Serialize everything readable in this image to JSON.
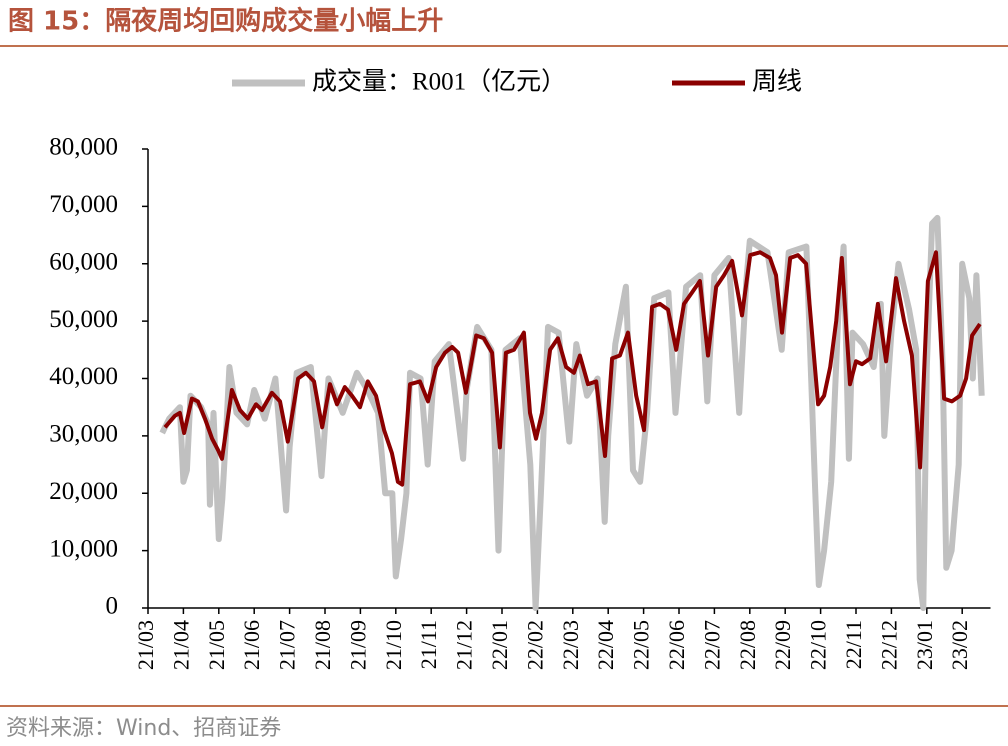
{
  "chart_data": {
    "type": "line",
    "title": "图 15：隔夜周均回购成交量小幅上升",
    "source": "资料来源：Wind、招商证券",
    "xlim": [
      0,
      23.8
    ],
    "xticks": [
      {
        "value": 0,
        "label": "21/03"
      },
      {
        "value": 1,
        "label": "21/04"
      },
      {
        "value": 2,
        "label": "21/05"
      },
      {
        "value": 3,
        "label": "21/06"
      },
      {
        "value": 4,
        "label": "21/07"
      },
      {
        "value": 5,
        "label": "21/08"
      },
      {
        "value": 6,
        "label": "21/09"
      },
      {
        "value": 7,
        "label": "21/10"
      },
      {
        "value": 8,
        "label": "21/11"
      },
      {
        "value": 9,
        "label": "21/12"
      },
      {
        "value": 10,
        "label": "22/01"
      },
      {
        "value": 11,
        "label": "22/02"
      },
      {
        "value": 12,
        "label": "22/03"
      },
      {
        "value": 13,
        "label": "22/04"
      },
      {
        "value": 14,
        "label": "22/05"
      },
      {
        "value": 15,
        "label": "22/06"
      },
      {
        "value": 16,
        "label": "22/07"
      },
      {
        "value": 17,
        "label": "22/08"
      },
      {
        "value": 18,
        "label": "22/09"
      },
      {
        "value": 19,
        "label": "22/10"
      },
      {
        "value": 20,
        "label": "22/11"
      },
      {
        "value": 21,
        "label": "22/12"
      },
      {
        "value": 22,
        "label": "23/01"
      },
      {
        "value": 23,
        "label": "23/02"
      }
    ],
    "ylim": [
      0,
      80000
    ],
    "yticks": [
      0,
      {
        "value": 10000,
        "label": "10,000"
      },
      {
        "value": 20000,
        "label": "20,000"
      },
      {
        "value": 30000,
        "label": "30,000"
      },
      {
        "value": 40000,
        "label": "40,000"
      },
      {
        "value": 50000,
        "label": "50,000"
      },
      {
        "value": 60000,
        "label": "60,000"
      },
      {
        "value": 70000,
        "label": "70,000"
      },
      {
        "value": 80000,
        "label": "80,000"
      }
    ],
    "series": [
      {
        "name": "成交量：R001（亿元）",
        "color": "#c0c0c0",
        "width": 6,
        "x": [
          0.4,
          0.6,
          0.9,
          1.0,
          1.1,
          1.2,
          1.5,
          1.7,
          1.75,
          1.85,
          2.0,
          2.1,
          2.2,
          2.3,
          2.5,
          2.8,
          3.0,
          3.3,
          3.6,
          3.9,
          4.0,
          4.2,
          4.6,
          4.9,
          5.1,
          5.5,
          5.9,
          6.2,
          6.5,
          6.7,
          6.9,
          7.0,
          7.15,
          7.3,
          7.4,
          7.7,
          7.9,
          8.1,
          8.5,
          8.9,
          9.0,
          9.3,
          9.7,
          9.9,
          10.1,
          10.5,
          10.8,
          10.95,
          11.1,
          11.3,
          11.6,
          11.9,
          12.1,
          12.4,
          12.7,
          12.9,
          13.0,
          13.2,
          13.5,
          13.7,
          13.9,
          14.1,
          14.3,
          14.7,
          14.9,
          15.2,
          15.6,
          15.8,
          16.0,
          16.4,
          16.7,
          16.9,
          17.0,
          17.5,
          17.9,
          18.1,
          18.6,
          18.85,
          18.95,
          19.1,
          19.3,
          19.5,
          19.65,
          19.8,
          19.9,
          20.2,
          20.5,
          20.7,
          20.8,
          21.0,
          21.2,
          21.5,
          21.7,
          21.8,
          21.9,
          22.0,
          22.15,
          22.3,
          22.45,
          22.55,
          22.7,
          22.9,
          23.0,
          23.2,
          23.3,
          23.4,
          23.55
        ],
        "values": [
          30500,
          33000,
          35000,
          22000,
          24000,
          37000,
          35000,
          32000,
          18000,
          34000,
          12000,
          19000,
          30000,
          42000,
          34000,
          32000,
          38000,
          33000,
          40000,
          17000,
          28000,
          41000,
          42000,
          23000,
          40000,
          34000,
          41000,
          38000,
          34000,
          20000,
          20000,
          5500,
          12000,
          20000,
          41000,
          40000,
          25000,
          43000,
          46000,
          26000,
          38000,
          49000,
          45000,
          10000,
          45000,
          47000,
          25000,
          0,
          20000,
          49000,
          48000,
          29000,
          46000,
          37000,
          40000,
          15000,
          30000,
          46000,
          56000,
          24000,
          22000,
          34000,
          54000,
          55000,
          34000,
          56000,
          58000,
          36000,
          58000,
          61000,
          34000,
          57000,
          64000,
          62000,
          45000,
          62000,
          63000,
          20000,
          4000,
          10000,
          22000,
          51000,
          63000,
          26000,
          48000,
          46000,
          42000,
          53000,
          30000,
          48000,
          60000,
          52000,
          45000,
          5000,
          0,
          42000,
          67000,
          68000,
          42000,
          7000,
          10000,
          25000,
          60000,
          54000,
          40000,
          58000,
          37000
        ]
      },
      {
        "name": "周线",
        "color": "#8b0000",
        "width": 4,
        "x": [
          0.48,
          0.76,
          0.9,
          1.02,
          1.24,
          1.41,
          1.61,
          1.81,
          1.98,
          2.09,
          2.37,
          2.6,
          2.82,
          3.05,
          3.22,
          3.5,
          3.73,
          3.95,
          4.24,
          4.46,
          4.69,
          4.92,
          5.14,
          5.34,
          5.56,
          5.76,
          5.99,
          6.21,
          6.44,
          6.67,
          6.89,
          7.06,
          7.18,
          7.4,
          7.68,
          7.91,
          8.14,
          8.39,
          8.59,
          8.76,
          8.98,
          9.27,
          9.49,
          9.72,
          9.94,
          10.11,
          10.34,
          10.62,
          10.79,
          10.96,
          11.13,
          11.36,
          11.58,
          11.81,
          12.03,
          12.2,
          12.43,
          12.66,
          12.91,
          13.11,
          13.33,
          13.56,
          13.79,
          14.01,
          14.24,
          14.46,
          14.69,
          14.92,
          15.14,
          15.37,
          15.59,
          15.82,
          16.05,
          16.27,
          16.5,
          16.78,
          17.01,
          17.29,
          17.57,
          17.74,
          17.91,
          18.14,
          18.36,
          18.59,
          18.93,
          19.1,
          19.27,
          19.44,
          19.6,
          19.83,
          20.0,
          20.17,
          20.4,
          20.62,
          20.85,
          21.13,
          21.36,
          21.58,
          21.81,
          22.03,
          22.26,
          22.49,
          22.71,
          22.94,
          23.11,
          23.28,
          23.5
        ],
        "values": [
          31500,
          33500,
          34000,
          30500,
          36500,
          36000,
          33000,
          29500,
          27500,
          26000,
          38000,
          34500,
          33000,
          35500,
          34500,
          37500,
          36000,
          29000,
          40000,
          41000,
          39500,
          31500,
          39000,
          35500,
          38500,
          37000,
          35000,
          39500,
          37000,
          31000,
          27000,
          22000,
          21500,
          39000,
          39500,
          36000,
          42000,
          44500,
          45500,
          44500,
          37500,
          47500,
          47000,
          44500,
          28000,
          44500,
          45000,
          48000,
          34000,
          29500,
          34000,
          45000,
          47000,
          42000,
          41000,
          44000,
          39000,
          39500,
          26500,
          43500,
          44000,
          48000,
          37000,
          31000,
          52500,
          53000,
          52000,
          45000,
          53000,
          55000,
          57000,
          44000,
          56000,
          58000,
          60500,
          51000,
          61500,
          62000,
          61000,
          58000,
          48000,
          61000,
          61500,
          60000,
          35500,
          37000,
          42000,
          50000,
          61000,
          39000,
          43000,
          42500,
          43500,
          53000,
          43000,
          57500,
          50000,
          44000,
          24500,
          57000,
          62000,
          36500,
          36000,
          37000,
          40000,
          47500,
          49500
        ]
      }
    ]
  }
}
